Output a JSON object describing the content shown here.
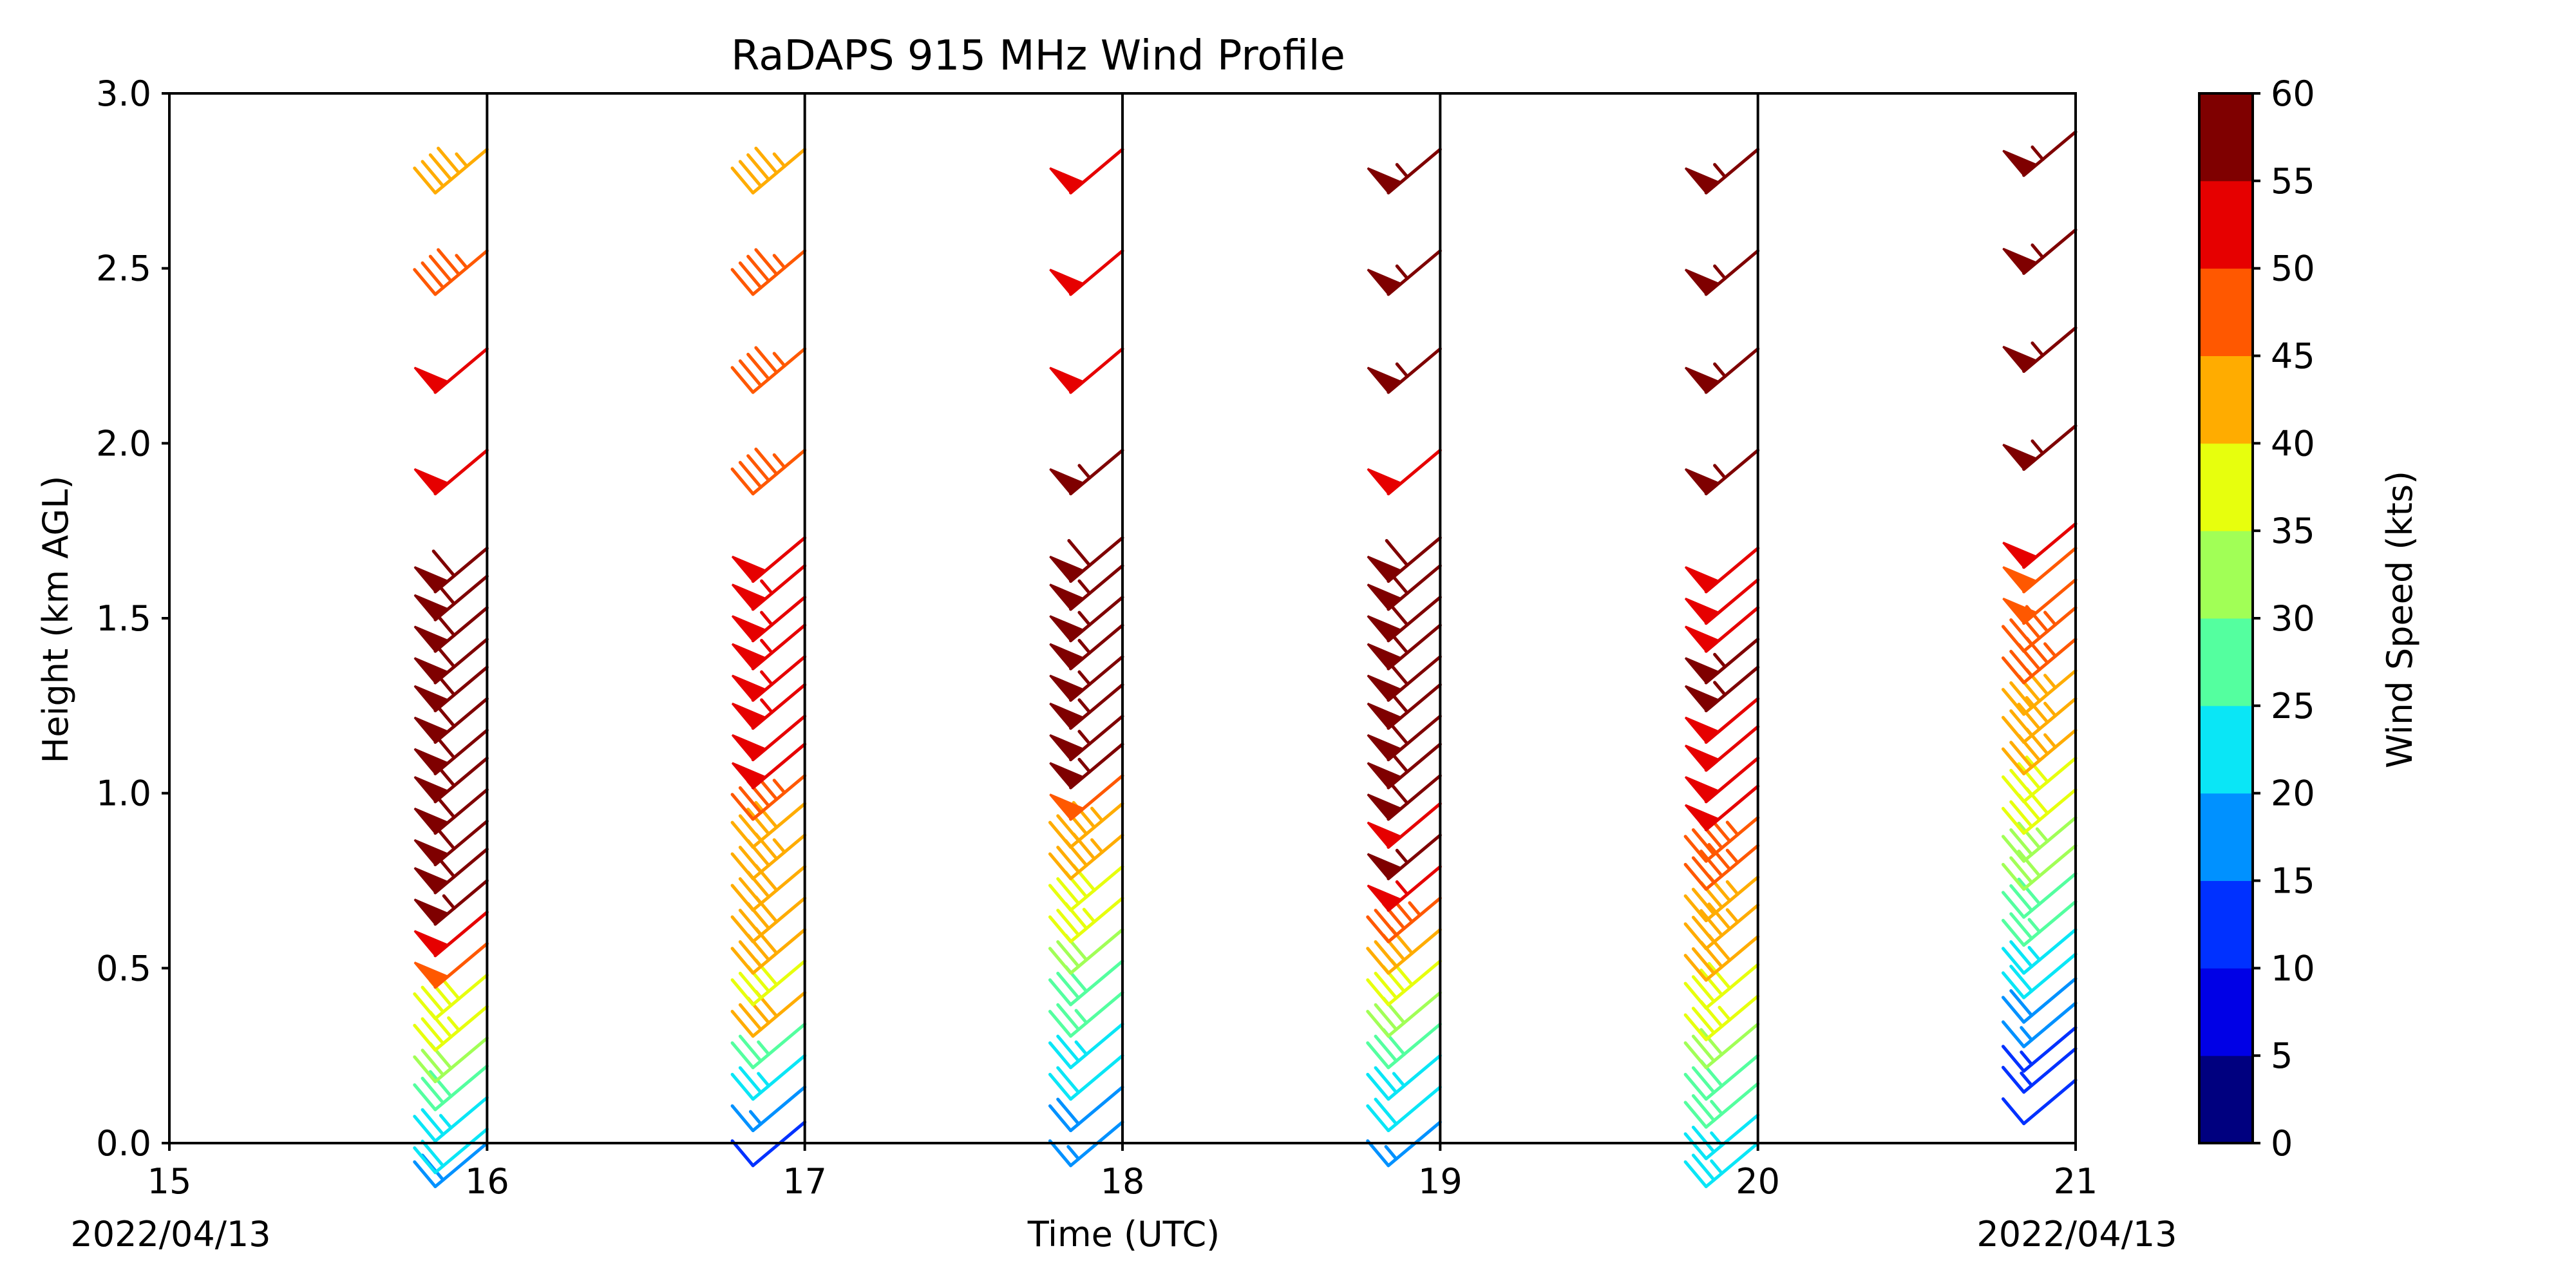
{
  "chart_data": {
    "type": "wind-barb-profile",
    "title": "RaDAPS 915 MHz Wind Profile",
    "xlabel": "Time (UTC)",
    "ylabel": "Height (km AGL)",
    "xlim": [
      15,
      21
    ],
    "ylim": [
      0,
      3.0
    ],
    "x_ticks": [
      "15",
      "16",
      "17",
      "18",
      "19",
      "20",
      "21"
    ],
    "y_ticks": [
      "0.0",
      "0.5",
      "1.0",
      "1.5",
      "2.0",
      "2.5",
      "3.0"
    ],
    "x_start_date": "2022/04/13",
    "x_end_date": "2022/04/13",
    "colorbar": {
      "label": "Wind Speed (kts)",
      "ticks": [
        "0",
        "5",
        "10",
        "15",
        "20",
        "25",
        "30",
        "35",
        "40",
        "45",
        "50",
        "55",
        "60"
      ],
      "colors": [
        "#00007f",
        "#0000e6",
        "#0031ff",
        "#0091ff",
        "#0ae6f6",
        "#54ff9f",
        "#a1ff56",
        "#e7ff0d",
        "#ffac00",
        "#ff5800",
        "#e60000",
        "#7f0000"
      ]
    },
    "wind_direction_deg": 230,
    "profiles": [
      {
        "time": 16,
        "heights": [
          0.0,
          0.04,
          0.13,
          0.22,
          0.3,
          0.39,
          0.48,
          0.57,
          0.66,
          0.75,
          0.84,
          0.92,
          1.01,
          1.1,
          1.18,
          1.27,
          1.36,
          1.44,
          1.53,
          1.62,
          1.7,
          1.98,
          2.27,
          2.55,
          2.84
        ],
        "speeds": [
          19,
          22,
          24,
          28,
          32,
          36,
          38,
          48,
          52,
          56,
          58,
          58,
          58,
          58,
          58,
          58,
          58,
          58,
          58,
          58,
          58,
          52,
          52,
          47,
          43
        ]
      },
      {
        "time": 17,
        "heights": [
          0.06,
          0.16,
          0.25,
          0.34,
          0.43,
          0.52,
          0.61,
          0.7,
          0.79,
          0.88,
          0.97,
          1.05,
          1.14,
          1.22,
          1.31,
          1.39,
          1.48,
          1.56,
          1.65,
          1.73,
          1.98,
          2.27,
          2.55,
          2.84
        ],
        "speeds": [
          12,
          17,
          24,
          27,
          40,
          39,
          40,
          42,
          41,
          43,
          42,
          47,
          52,
          52,
          53,
          53,
          53,
          53,
          53,
          52,
          47,
          47,
          47,
          43
        ]
      },
      {
        "time": 18,
        "heights": [
          0.06,
          0.16,
          0.25,
          0.34,
          0.43,
          0.52,
          0.61,
          0.7,
          0.79,
          0.88,
          0.97,
          1.05,
          1.14,
          1.22,
          1.31,
          1.39,
          1.48,
          1.56,
          1.65,
          1.73,
          1.98,
          2.27,
          2.55,
          2.84
        ],
        "speeds": [
          17,
          18,
          22,
          24,
          27,
          28,
          32,
          36,
          38,
          43,
          43,
          48,
          57,
          56,
          57,
          57,
          57,
          57,
          57,
          58,
          57,
          52,
          52,
          52
        ]
      },
      {
        "time": 19,
        "heights": [
          0.06,
          0.16,
          0.25,
          0.34,
          0.43,
          0.52,
          0.61,
          0.7,
          0.79,
          0.88,
          0.97,
          1.05,
          1.14,
          1.22,
          1.31,
          1.39,
          1.48,
          1.56,
          1.65,
          1.73,
          1.98,
          2.27,
          2.55,
          2.84
        ],
        "speeds": [
          16,
          22,
          23,
          28,
          32,
          38,
          42,
          47,
          53,
          57,
          52,
          58,
          58,
          58,
          58,
          58,
          58,
          58,
          58,
          58,
          52,
          57,
          57,
          57
        ]
      },
      {
        "time": 20,
        "heights": [
          0.0,
          0.08,
          0.17,
          0.25,
          0.34,
          0.42,
          0.51,
          0.59,
          0.68,
          0.76,
          0.85,
          0.93,
          1.02,
          1.1,
          1.19,
          1.27,
          1.36,
          1.44,
          1.53,
          1.61,
          1.7,
          1.98,
          2.27,
          2.55,
          2.84
        ],
        "speeds": [
          24,
          24,
          26,
          28,
          31,
          37,
          38,
          42,
          43,
          43,
          46,
          47,
          52,
          52,
          52,
          52,
          57,
          57,
          52,
          52,
          52,
          57,
          57,
          57,
          57
        ]
      },
      {
        "time": 21,
        "heights": [
          0.18,
          0.27,
          0.33,
          0.4,
          0.47,
          0.54,
          0.61,
          0.69,
          0.77,
          0.85,
          0.93,
          1.01,
          1.1,
          1.18,
          1.27,
          1.35,
          1.44,
          1.53,
          1.61,
          1.7,
          1.77,
          2.05,
          2.33,
          2.61,
          2.89
        ],
        "speeds": [
          12,
          13,
          14,
          16,
          18,
          22,
          23,
          27,
          28,
          32,
          34,
          38,
          38,
          43,
          43,
          43,
          47,
          47,
          48,
          48,
          52,
          57,
          57,
          57,
          57
        ]
      }
    ]
  }
}
